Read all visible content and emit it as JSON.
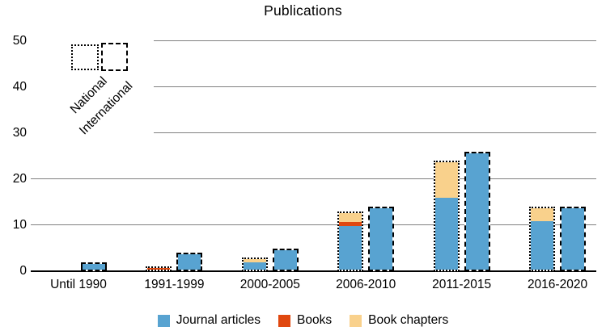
{
  "title": "Publications",
  "pattern_legend": {
    "national_label": "National",
    "international_label": "International"
  },
  "color_legend": [
    {
      "label": "Journal articles",
      "color": "#58A3D1"
    },
    {
      "label": "Books",
      "color": "#E0480F"
    },
    {
      "label": "Book chapters",
      "color": "#F9D18C"
    }
  ],
  "chart_data": {
    "type": "bar",
    "stacked": true,
    "title": "Publications",
    "categories": [
      "Until 1990",
      "1991-1999",
      "2000-2005",
      "2006-2010",
      "2011-2015",
      "2016-2020"
    ],
    "y_ticks": [
      0,
      10,
      20,
      30,
      40,
      50
    ],
    "ylim": [
      0,
      50
    ],
    "grid": "horizontal",
    "legend_position": "bottom",
    "colors": {
      "Journal articles": "#58A3D1",
      "Books": "#E0480F",
      "Book chapters": "#F9D18C"
    },
    "series_groups": [
      {
        "name": "National",
        "border_style": "dotted",
        "segments": [
          {
            "name": "Journal articles",
            "values": [
              0,
              0,
              2,
              10,
              16,
              11
            ]
          },
          {
            "name": "Books",
            "values": [
              0,
              1,
              0,
              1,
              0,
              0
            ]
          },
          {
            "name": "Book chapters",
            "values": [
              0,
              0,
              1,
              2,
              8,
              3
            ]
          }
        ],
        "totals": [
          0,
          1,
          3,
          13,
          24,
          14
        ]
      },
      {
        "name": "International",
        "border_style": "dashed",
        "segments": [
          {
            "name": "Journal articles",
            "values": [
              2,
              4,
              5,
              14,
              26,
              14
            ]
          },
          {
            "name": "Books",
            "values": [
              0,
              0,
              0,
              0,
              0,
              0
            ]
          },
          {
            "name": "Book chapters",
            "values": [
              0,
              0,
              0,
              0,
              0,
              0
            ]
          }
        ],
        "totals": [
          2,
          4,
          5,
          14,
          26,
          14
        ]
      }
    ]
  }
}
